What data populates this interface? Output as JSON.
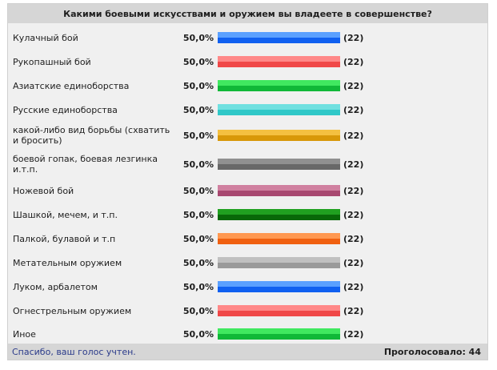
{
  "poll": {
    "question": "Какими боевыми искусствами и оружием вы владеете в совершенстве?",
    "options": [
      {
        "label": "Кулачный бой",
        "percent": "50,0%",
        "count": "(22)",
        "fraction": 1.0,
        "color_top": "#5aa0ff",
        "color_bottom": "#1060f0"
      },
      {
        "label": "Рукопашный бой",
        "percent": "50,0%",
        "count": "(22)",
        "fraction": 1.0,
        "color_top": "#ff8888",
        "color_bottom": "#f04848"
      },
      {
        "label": "Азиатские единоборства",
        "percent": "50,0%",
        "count": "(22)",
        "fraction": 1.0,
        "color_top": "#40e860",
        "color_bottom": "#10b838"
      },
      {
        "label": "Русские единоборства",
        "percent": "50,0%",
        "count": "(22)",
        "fraction": 1.0,
        "color_top": "#70e0e0",
        "color_bottom": "#30c8c8"
      },
      {
        "label": "какой-либо вид борьбы (схватить и бросить)",
        "percent": "50,0%",
        "count": "(22)",
        "fraction": 1.0,
        "color_top": "#f4c040",
        "color_bottom": "#d89808"
      },
      {
        "label": "боевой гопак, боевая лезгинка и.т.п.",
        "percent": "50,0%",
        "count": "(22)",
        "fraction": 1.0,
        "color_top": "#909090",
        "color_bottom": "#686868"
      },
      {
        "label": "Ножевой бой",
        "percent": "50,0%",
        "count": "(22)",
        "fraction": 1.0,
        "color_top": "#d080a0",
        "color_bottom": "#a84870"
      },
      {
        "label": "Шашкой, мечем, и т.п.",
        "percent": "50,0%",
        "count": "(22)",
        "fraction": 1.0,
        "color_top": "#20a020",
        "color_bottom": "#086808"
      },
      {
        "label": "Палкой, булавой и т.п",
        "percent": "50,0%",
        "count": "(22)",
        "fraction": 1.0,
        "color_top": "#ff9850",
        "color_bottom": "#f06010"
      },
      {
        "label": "Метательным оружием",
        "percent": "50,0%",
        "count": "(22)",
        "fraction": 1.0,
        "color_top": "#c0c0c0",
        "color_bottom": "#9a9a9a"
      },
      {
        "label": "Луком, арбалетом",
        "percent": "50,0%",
        "count": "(22)",
        "fraction": 1.0,
        "color_top": "#5aa0ff",
        "color_bottom": "#1060f0"
      },
      {
        "label": "Огнестрельным оружием",
        "percent": "50,0%",
        "count": "(22)",
        "fraction": 1.0,
        "color_top": "#ff8888",
        "color_bottom": "#f04848"
      },
      {
        "label": "Иное",
        "percent": "50,0%",
        "count": "(22)",
        "fraction": 1.0,
        "color_top": "#40e860",
        "color_bottom": "#10b838"
      }
    ],
    "footer": {
      "thanks": "Спасибо, ваш голос учтен.",
      "total": "Проголосовало: 44"
    }
  }
}
